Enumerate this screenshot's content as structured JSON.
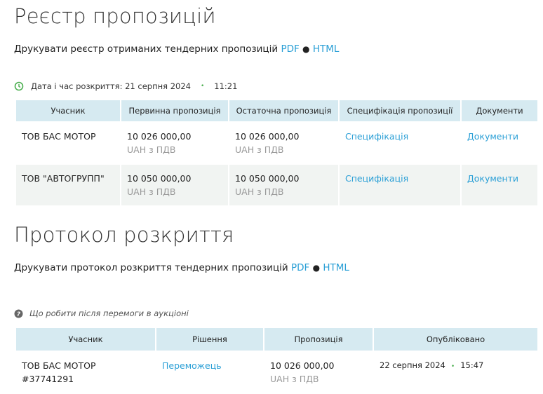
{
  "registry": {
    "title": "Реєстр пропозицій",
    "print_text": "Друкувати реєстр отриманих тендерних пропозицій",
    "pdf": "PDF",
    "html": "HTML",
    "opening_label": "Дата і час розкриття: 21 серпня 2024",
    "opening_time": "11:21",
    "headers": [
      "Учасник",
      "Первинна пропозиція",
      "Остаточна пропозиція",
      "Специфікація пропозиції",
      "Документи"
    ],
    "rows": [
      {
        "participant": "ТОВ БАС МОТОР",
        "initial": "10 026 000,00",
        "initial_unit": "UAH з ПДВ",
        "final": "10 026 000,00",
        "final_unit": "UAH з ПДВ",
        "spec": "Специфікація",
        "docs": "Документи"
      },
      {
        "participant": "ТОВ \"АВТОГРУПП\"",
        "initial": "10 050 000,00",
        "initial_unit": "UAH з ПДВ",
        "final": "10 050 000,00",
        "final_unit": "UAH з ПДВ",
        "spec": "Специфікація",
        "docs": "Документи"
      }
    ]
  },
  "protocol": {
    "title": "Протокол розкриття",
    "print_text": "Друкувати протокол розкриття тендерних пропозицій",
    "pdf": "PDF",
    "html": "HTML",
    "help_text": "Що робити після перемоги в аукціоні",
    "headers": [
      "Учасник",
      "Рішення",
      "Пропозиція",
      "Опубліковано"
    ],
    "rows": [
      {
        "participant": "ТОВ БАС МОТОР",
        "code": "#37741291",
        "decision": "Переможець",
        "offer": "10 026 000,00",
        "offer_unit": "UAH з ПДВ",
        "published_date": "22 серпня 2024",
        "published_time": "15:47"
      }
    ]
  },
  "colors": {
    "link": "#2a9fd6",
    "header_bg": "#d6eaf1",
    "clock": "#4caf50"
  }
}
